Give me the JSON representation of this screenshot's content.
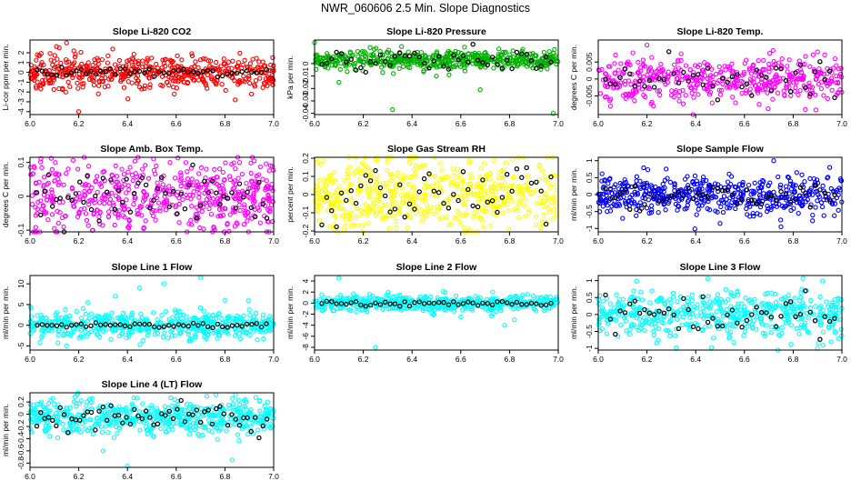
{
  "figure_title": "NWR_060606  2.5 Min. Slope Diagnostics",
  "chart_data": [
    {
      "type": "scatter",
      "title": "Slope Li-820 CO2",
      "ylabel": "Li-cor ppm per min.",
      "xlim": [
        6.0,
        7.0
      ],
      "ylim": [
        -4.3,
        3.3
      ],
      "xticks": [
        "6.0",
        "6.2",
        "6.4",
        "6.6",
        "6.8",
        "7.0"
      ],
      "yticks": [
        -4,
        -3,
        -2,
        -1,
        0,
        1,
        2
      ],
      "point_color": "#ff0000",
      "point_count": 520,
      "spread": 0.8,
      "highlight_count": 48,
      "highlight_spread": 0.25,
      "center": 0,
      "outliers": [
        [
          6.12,
          2.5
        ],
        [
          6.15,
          3.0
        ],
        [
          6.18,
          2.2
        ],
        [
          6.2,
          -4.0
        ],
        [
          6.03,
          1.8
        ],
        [
          6.45,
          -1.5
        ]
      ]
    },
    {
      "type": "scatter",
      "title": "Slope Li-820 Pressure",
      "ylabel": "kPa per min.",
      "xlim": [
        6.0,
        7.0
      ],
      "ylim": [
        -0.041,
        0.019
      ],
      "xticks": [
        "6.0",
        "6.2",
        "6.4",
        "6.6",
        "6.8",
        "7.0"
      ],
      "yticks": [
        -0.04,
        -0.03,
        -0.02,
        -0.01,
        0
      ],
      "point_color": "#00b000",
      "point_count": 520,
      "spread": 0.004,
      "highlight_count": 48,
      "highlight_spread": 0.004,
      "center": 0.003,
      "outliers": [
        [
          6.0,
          0.017
        ],
        [
          6.32,
          -0.037
        ],
        [
          6.68,
          -0.021
        ],
        [
          6.98,
          -0.04
        ],
        [
          6.1,
          -0.015
        ],
        [
          6.5,
          -0.01
        ]
      ]
    },
    {
      "type": "scatter",
      "title": "Slope Li-820 Temp.",
      "ylabel": "degrees C per min.",
      "xlim": [
        6.0,
        7.0
      ],
      "ylim": [
        -0.0105,
        0.0115
      ],
      "xticks": [
        "6.0",
        "6.2",
        "6.4",
        "6.6",
        "6.8",
        "7.0"
      ],
      "yticks": [
        -0.005,
        0,
        0.005
      ],
      "point_color": "#ff00ff",
      "point_count": 480,
      "spread": 0.0032,
      "highlight_count": 48,
      "highlight_spread": 0.0025,
      "center": 0,
      "outliers": [
        [
          6.2,
          0.01
        ],
        [
          6.05,
          -0.008
        ],
        [
          6.85,
          -0.009
        ],
        [
          6.9,
          0.008
        ]
      ]
    },
    {
      "type": "scatter",
      "title": "Slope Amb. Box Temp.",
      "ylabel": "degrees C per min.",
      "xlim": [
        6.0,
        7.0
      ],
      "ylim": [
        -0.105,
        0.115
      ],
      "xticks": [
        "6.0",
        "6.2",
        "6.4",
        "6.6",
        "6.8",
        "7.0"
      ],
      "yticks": [
        -0.1,
        0,
        0.1
      ],
      "point_color": "#ff00ff",
      "point_count": 560,
      "spread": 0.05,
      "highlight_count": 60,
      "highlight_spread": 0.04,
      "center": 0,
      "outliers": [
        [
          6.86,
          0.1
        ],
        [
          6.1,
          -0.095
        ]
      ]
    },
    {
      "type": "scatter",
      "title": "Slope Gas Stream RH",
      "ylabel": "percent per min.",
      "xlim": [
        6.0,
        7.0
      ],
      "ylim": [
        -0.205,
        0.205
      ],
      "xticks": [
        "6.0",
        "6.2",
        "6.4",
        "6.6",
        "6.8",
        "7.0"
      ],
      "yticks": [
        -0.2,
        -0.1,
        0,
        0.1,
        0.2
      ],
      "point_color": "#ffff00",
      "point_count": 560,
      "spread": 0.1,
      "highlight_count": 48,
      "highlight_spread": 0.08,
      "center": 0,
      "outliers": [
        [
          6.08,
          -0.19
        ],
        [
          6.3,
          0.18
        ]
      ]
    },
    {
      "type": "scatter",
      "title": "Slope Sample Flow",
      "ylabel": "ml/min per min.",
      "xlim": [
        6.0,
        7.0
      ],
      "ylim": [
        -1.1,
        1.1
      ],
      "xticks": [
        "6.0",
        "6.2",
        "6.4",
        "6.6",
        "6.8",
        "7.0"
      ],
      "yticks": [
        -1,
        -0.5,
        0,
        0.5,
        1
      ],
      "point_color": "#0000ff",
      "point_count": 520,
      "spread": 0.28,
      "highlight_count": 48,
      "highlight_spread": 0.2,
      "center": 0,
      "outliers": [
        [
          6.72,
          1.0
        ],
        [
          6.95,
          0.8
        ],
        [
          6.1,
          -0.7
        ],
        [
          6.5,
          -0.85
        ],
        [
          6.75,
          -0.95
        ]
      ]
    },
    {
      "type": "scatter",
      "title": "Slope Line 1 Flow",
      "ylabel": "ml/min per min.",
      "xlim": [
        6.0,
        7.0
      ],
      "ylim": [
        -6,
        12
      ],
      "xticks": [
        "6.0",
        "6.2",
        "6.4",
        "6.6",
        "6.8",
        "7.0"
      ],
      "yticks": [
        -5,
        0,
        5,
        10
      ],
      "point_color": "#00ffff",
      "point_count": 520,
      "spread": 1.5,
      "highlight_count": 48,
      "highlight_spread": 0.3,
      "center": 0,
      "outliers": [
        [
          6.7,
          11.5
        ],
        [
          6.55,
          10
        ],
        [
          6.45,
          9
        ],
        [
          6.15,
          -5
        ],
        [
          6.35,
          7
        ],
        [
          6.8,
          6
        ]
      ]
    },
    {
      "type": "scatter",
      "title": "Slope Line 2 Flow",
      "ylabel": "ml/min per min.",
      "xlim": [
        6.0,
        7.0
      ],
      "ylim": [
        -8.5,
        5
      ],
      "xticks": [
        "6.0",
        "6.2",
        "6.4",
        "6.6",
        "6.8",
        "7.0"
      ],
      "yticks": [
        -8,
        -6,
        -4,
        -2,
        0,
        2,
        4
      ],
      "point_color": "#00ffff",
      "point_count": 520,
      "spread": 0.7,
      "highlight_count": 48,
      "highlight_spread": 0.25,
      "center": 0,
      "outliers": [
        [
          6.25,
          -8
        ],
        [
          6.1,
          4.5
        ],
        [
          6.6,
          -2.5
        ],
        [
          6.78,
          -4
        ],
        [
          6.82,
          -3
        ]
      ]
    },
    {
      "type": "scatter",
      "title": "Slope Line 3 Flow",
      "ylabel": "ml/min per min.",
      "xlim": [
        6.0,
        7.0
      ],
      "ylim": [
        -1.05,
        1.15
      ],
      "xticks": [
        "6.0",
        "6.2",
        "6.4",
        "6.6",
        "6.8",
        "7.0"
      ],
      "yticks": [
        -1,
        -0.5,
        0,
        0.5,
        1
      ],
      "point_color": "#00ffff",
      "point_count": 520,
      "spread": 0.35,
      "highlight_count": 48,
      "highlight_spread": 0.3,
      "center": 0,
      "outliers": [
        [
          6.32,
          -0.98
        ],
        [
          6.45,
          1.05
        ],
        [
          6.9,
          -1.0
        ]
      ]
    },
    {
      "type": "scatter",
      "title": "Slope Line 4 (LT) Flow",
      "ylabel": "ml/min per min.",
      "xlim": [
        6.0,
        7.0
      ],
      "ylim": [
        -0.87,
        0.35
      ],
      "xticks": [
        "6.0",
        "6.2",
        "6.4",
        "6.6",
        "6.8",
        "7.0"
      ],
      "yticks": [
        -0.8,
        -0.6,
        -0.4,
        -0.2,
        0,
        0.2
      ],
      "point_color": "#00ffff",
      "point_count": 560,
      "spread": 0.14,
      "highlight_count": 60,
      "highlight_spread": 0.12,
      "center": -0.05,
      "outliers": [
        [
          6.4,
          -0.85
        ],
        [
          6.83,
          -0.75
        ],
        [
          6.3,
          -0.6
        ]
      ]
    }
  ]
}
